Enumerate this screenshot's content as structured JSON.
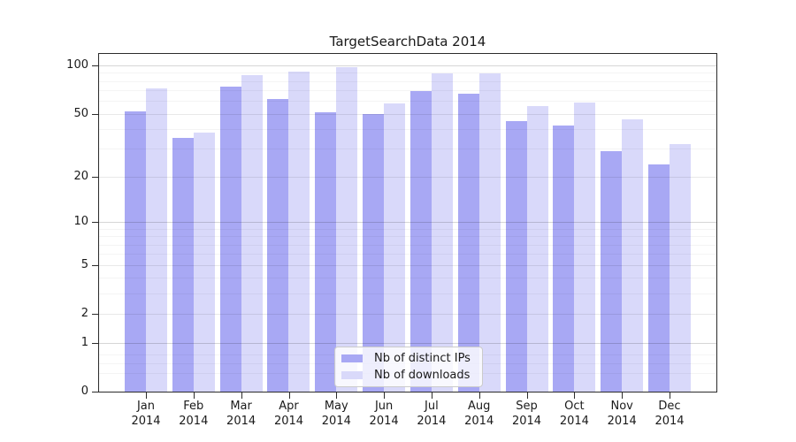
{
  "title": "TargetSearchData 2014",
  "chart_data": {
    "type": "bar",
    "title": "TargetSearchData 2014",
    "categories": [
      "Jan 2014",
      "Feb 2014",
      "Mar 2014",
      "Apr 2014",
      "May 2014",
      "Jun 2014",
      "Jul 2014",
      "Aug 2014",
      "Sep 2014",
      "Oct 2014",
      "Nov 2014",
      "Dec 2014"
    ],
    "series": [
      {
        "name": "Nb of distinct IPs",
        "color": "#a8a8f4",
        "values": [
          52,
          35,
          74,
          62,
          51,
          50,
          69,
          67,
          45,
          42,
          29,
          24
        ]
      },
      {
        "name": "Nb of downloads",
        "color": "#d9d9fa",
        "values": [
          72,
          38,
          87,
          91,
          97,
          58,
          89,
          89,
          56,
          59,
          46,
          32
        ]
      }
    ],
    "xlabel": "",
    "ylabel": "",
    "yscale": "log1p",
    "ylim": [
      0,
      118
    ],
    "yticks": [
      0,
      1,
      2,
      5,
      10,
      20,
      50,
      100
    ],
    "minor_gridlines": [
      0.3,
      0.5,
      0.7,
      3,
      4,
      6,
      7,
      8,
      9,
      30,
      40,
      60,
      70,
      80,
      90
    ],
    "grid": true,
    "legend_position": "lower center"
  }
}
